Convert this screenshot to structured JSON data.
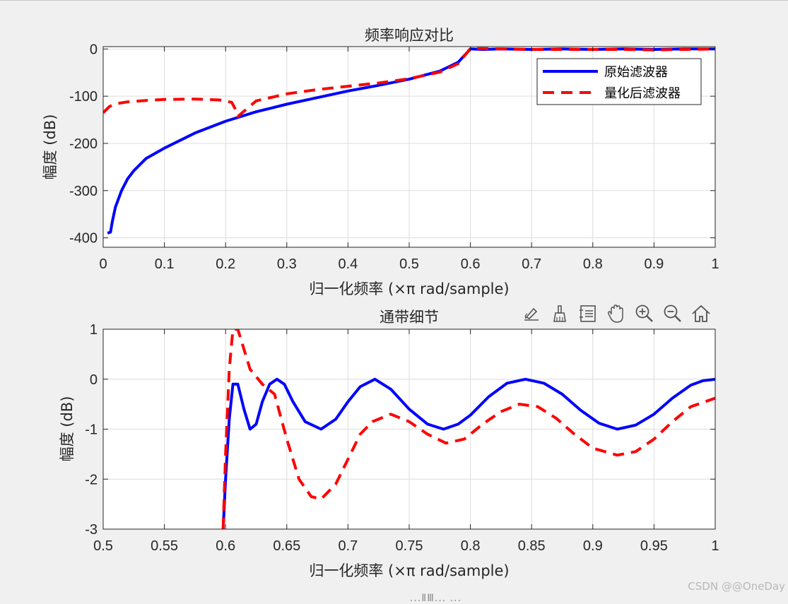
{
  "window": {
    "watermark": "CSDN @@OneDay",
    "cutoff_text": "...ⅡⅢ... ..."
  },
  "toolbar": {
    "tools": [
      {
        "name": "data-tips-icon"
      },
      {
        "name": "brush-icon"
      },
      {
        "name": "legend-toggle-icon"
      },
      {
        "name": "pan-hand-icon"
      },
      {
        "name": "zoom-in-icon"
      },
      {
        "name": "zoom-out-icon"
      },
      {
        "name": "home-icon"
      }
    ]
  },
  "colors": {
    "original": "#0000ff",
    "quantized": "#ff0000",
    "grid": "#dcdcdc",
    "axes": "#262626"
  },
  "chart_data": [
    {
      "type": "line",
      "title": "频率响应对比",
      "xlabel": "归一化频率 (×π rad/sample)",
      "ylabel": "幅度 (dB)",
      "xlim": [
        0,
        1
      ],
      "ylim": [
        -420,
        5
      ],
      "xticks": [
        0,
        0.1,
        0.2,
        0.3,
        0.4,
        0.5,
        0.6,
        0.7,
        0.8,
        0.9,
        1
      ],
      "xtick_labels": [
        "0",
        "0.1",
        "0.2",
        "0.3",
        "0.4",
        "0.5",
        "0.6",
        "0.7",
        "0.8",
        "0.9",
        "1"
      ],
      "yticks": [
        0,
        -100,
        -200,
        -300,
        -400
      ],
      "ytick_labels": [
        "0",
        "-100",
        "-200",
        "-300",
        "-400"
      ],
      "grid": true,
      "legend_position": "top-right",
      "series": [
        {
          "name": "原始滤波器",
          "style": "solid",
          "x": [
            0.007,
            0.012,
            0.015,
            0.02,
            0.03,
            0.04,
            0.05,
            0.07,
            0.1,
            0.15,
            0.2,
            0.25,
            0.3,
            0.35,
            0.4,
            0.45,
            0.5,
            0.55,
            0.58,
            0.6,
            0.62,
            0.65,
            0.7,
            0.75,
            0.8,
            0.85,
            0.9,
            0.95,
            1.0
          ],
          "y": [
            -390,
            -388,
            -365,
            -335,
            -300,
            -275,
            -258,
            -232,
            -210,
            -178,
            -153,
            -133,
            -117,
            -103,
            -89,
            -77,
            -64,
            -47,
            -28,
            0,
            -1,
            0,
            -1,
            0,
            -1,
            0,
            -1,
            0,
            0
          ]
        },
        {
          "name": "量化后滤波器",
          "style": "dashed",
          "x": [
            0,
            0.01,
            0.02,
            0.04,
            0.07,
            0.1,
            0.15,
            0.19,
            0.21,
            0.215,
            0.22,
            0.25,
            0.3,
            0.35,
            0.4,
            0.45,
            0.5,
            0.55,
            0.58,
            0.6,
            0.62,
            0.65,
            0.7,
            0.75,
            0.8,
            0.85,
            0.9,
            0.95,
            1.0
          ],
          "y": [
            -135,
            -122,
            -116,
            -112,
            -109,
            -107,
            -106,
            -108,
            -113,
            -125,
            -143,
            -110,
            -95,
            -86,
            -79,
            -72,
            -63,
            -49,
            -31,
            1,
            1,
            0,
            -1,
            -1,
            -1,
            -1,
            -2,
            -1,
            0
          ]
        }
      ]
    },
    {
      "type": "line",
      "title": "通带细节",
      "xlabel": "归一化频率 (×π rad/sample)",
      "ylabel": "幅度 (dB)",
      "xlim": [
        0.5,
        1
      ],
      "ylim": [
        -3,
        1
      ],
      "xticks": [
        0.5,
        0.55,
        0.6,
        0.65,
        0.7,
        0.75,
        0.8,
        0.85,
        0.9,
        0.95,
        1
      ],
      "xtick_labels": [
        "0.5",
        "0.55",
        "0.6",
        "0.65",
        "0.7",
        "0.75",
        "0.8",
        "0.85",
        "0.9",
        "0.95",
        "1"
      ],
      "yticks": [
        1,
        0,
        -1,
        -2,
        -3
      ],
      "ytick_labels": [
        "1",
        "0",
        "-1",
        "-2",
        "-3"
      ],
      "grid": true,
      "series": [
        {
          "name": "原始滤波器",
          "style": "solid",
          "x": [
            0.598,
            0.6,
            0.603,
            0.606,
            0.61,
            0.615,
            0.62,
            0.625,
            0.63,
            0.636,
            0.642,
            0.648,
            0.655,
            0.665,
            0.678,
            0.69,
            0.7,
            0.71,
            0.722,
            0.735,
            0.75,
            0.765,
            0.778,
            0.79,
            0.8,
            0.815,
            0.83,
            0.845,
            0.86,
            0.875,
            0.89,
            0.905,
            0.92,
            0.935,
            0.95,
            0.965,
            0.98,
            0.99,
            1.0
          ],
          "y": [
            -3.0,
            -2.0,
            -0.8,
            -0.1,
            -0.1,
            -0.6,
            -1.0,
            -0.9,
            -0.45,
            -0.1,
            0.0,
            -0.1,
            -0.45,
            -0.85,
            -1.0,
            -0.8,
            -0.45,
            -0.15,
            0.0,
            -0.2,
            -0.6,
            -0.9,
            -1.0,
            -0.9,
            -0.72,
            -0.35,
            -0.08,
            0.0,
            -0.08,
            -0.3,
            -0.62,
            -0.88,
            -1.0,
            -0.92,
            -0.7,
            -0.38,
            -0.12,
            -0.03,
            0.0
          ]
        },
        {
          "name": "量化后滤波器",
          "style": "dashed",
          "x": [
            0.598,
            0.6,
            0.603,
            0.606,
            0.61,
            0.615,
            0.62,
            0.63,
            0.64,
            0.65,
            0.66,
            0.67,
            0.678,
            0.69,
            0.7,
            0.71,
            0.72,
            0.735,
            0.75,
            0.765,
            0.78,
            0.795,
            0.81,
            0.825,
            0.84,
            0.855,
            0.87,
            0.885,
            0.9,
            0.92,
            0.935,
            0.95,
            0.965,
            0.98,
            1.0
          ],
          "y": [
            -3.0,
            -1.5,
            0.2,
            1.0,
            1.0,
            0.6,
            0.2,
            -0.1,
            -0.3,
            -1.2,
            -2.0,
            -2.35,
            -2.4,
            -2.1,
            -1.6,
            -1.1,
            -0.85,
            -0.7,
            -0.85,
            -1.1,
            -1.28,
            -1.2,
            -0.9,
            -0.65,
            -0.5,
            -0.55,
            -0.78,
            -1.1,
            -1.38,
            -1.52,
            -1.45,
            -1.2,
            -0.85,
            -0.55,
            -0.38
          ]
        }
      ]
    }
  ]
}
